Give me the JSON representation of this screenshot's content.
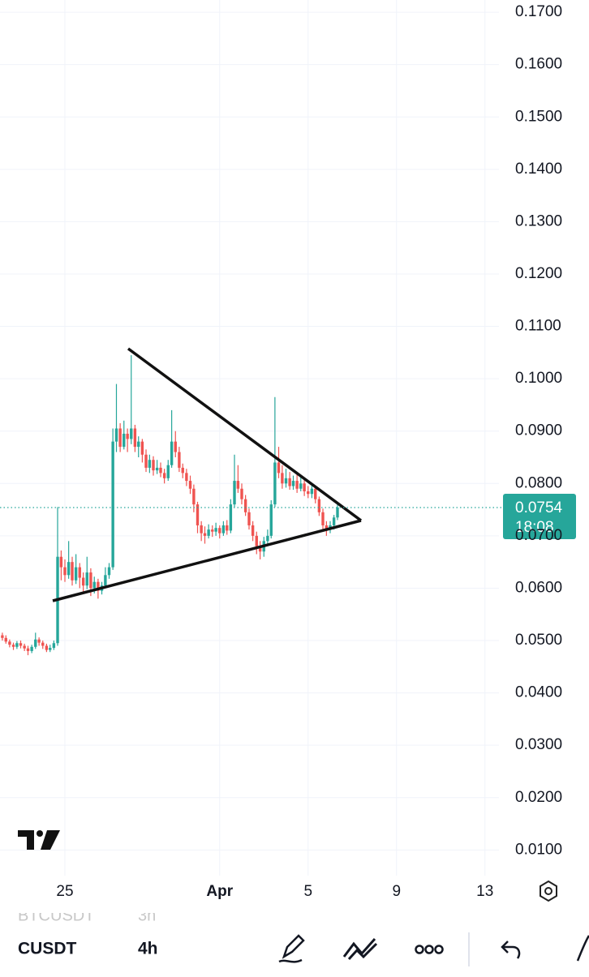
{
  "chart_data": {
    "type": "candlestick",
    "x": [
      22.17,
      22.33,
      22.5,
      22.67,
      22.83,
      23.0,
      23.17,
      23.33,
      23.5,
      23.67,
      23.83,
      24.0,
      24.17,
      24.33,
      24.5,
      24.67,
      24.83,
      25.0,
      25.17,
      25.33,
      25.5,
      25.67,
      25.83,
      26.0,
      26.17,
      26.33,
      26.5,
      26.67,
      26.83,
      27.0,
      27.17,
      27.33,
      27.5,
      27.67,
      27.83,
      28.0,
      28.17,
      28.33,
      28.5,
      28.67,
      28.83,
      29.0,
      29.17,
      29.33,
      29.5,
      29.67,
      29.83,
      30.0,
      30.17,
      30.33,
      30.5,
      30.67,
      30.83,
      31.0,
      31.17,
      31.33,
      31.5,
      31.67,
      31.83,
      32.0,
      32.17,
      32.33,
      32.5,
      32.67,
      32.83,
      33.0,
      33.17,
      33.33,
      33.5,
      33.67,
      33.83,
      34.0,
      34.17,
      34.33,
      34.5,
      34.67,
      34.83,
      35.0,
      35.17,
      35.33,
      35.5,
      35.67,
      35.83,
      36.0,
      36.17,
      36.33,
      36.5,
      36.67,
      36.83,
      37.0,
      37.17,
      37.33
    ],
    "open": [
      0.051,
      0.0505,
      0.0498,
      0.0492,
      0.0488,
      0.0495,
      0.049,
      0.0485,
      0.048,
      0.0488,
      0.0502,
      0.0496,
      0.049,
      0.0482,
      0.0486,
      0.0495,
      0.066,
      0.064,
      0.0625,
      0.065,
      0.0615,
      0.064,
      0.062,
      0.0605,
      0.063,
      0.06,
      0.0612,
      0.0595,
      0.0605,
      0.0625,
      0.064,
      0.088,
      0.0905,
      0.087,
      0.0895,
      0.0885,
      0.0905,
      0.087,
      0.088,
      0.0855,
      0.083,
      0.0845,
      0.0825,
      0.083,
      0.082,
      0.081,
      0.0835,
      0.088,
      0.086,
      0.083,
      0.082,
      0.0805,
      0.079,
      0.076,
      0.072,
      0.0705,
      0.07,
      0.0712,
      0.0708,
      0.0715,
      0.0705,
      0.072,
      0.071,
      0.076,
      0.0805,
      0.079,
      0.077,
      0.0745,
      0.072,
      0.07,
      0.068,
      0.067,
      0.069,
      0.07,
      0.076,
      0.084,
      0.082,
      0.08,
      0.081,
      0.0795,
      0.0805,
      0.079,
      0.08,
      0.0785,
      0.078,
      0.079,
      0.077,
      0.0745,
      0.072,
      0.0712,
      0.072,
      0.0735
    ],
    "high": [
      0.0515,
      0.051,
      0.0502,
      0.0496,
      0.0499,
      0.05,
      0.0494,
      0.049,
      0.0492,
      0.0515,
      0.0506,
      0.05,
      0.0494,
      0.0492,
      0.05,
      0.0755,
      0.0672,
      0.0655,
      0.069,
      0.066,
      0.0665,
      0.0648,
      0.063,
      0.066,
      0.0638,
      0.0622,
      0.0618,
      0.0612,
      0.064,
      0.0648,
      0.0905,
      0.099,
      0.0915,
      0.092,
      0.0905,
      0.1045,
      0.0912,
      0.089,
      0.0885,
      0.0865,
      0.0855,
      0.0852,
      0.0845,
      0.084,
      0.0828,
      0.0845,
      0.094,
      0.09,
      0.087,
      0.0838,
      0.0828,
      0.0815,
      0.0798,
      0.0765,
      0.0728,
      0.0718,
      0.0722,
      0.072,
      0.0725,
      0.072,
      0.0728,
      0.073,
      0.077,
      0.0855,
      0.0835,
      0.08,
      0.0778,
      0.0752,
      0.0728,
      0.0708,
      0.069,
      0.0698,
      0.0712,
      0.0768,
      0.0965,
      0.087,
      0.0835,
      0.0828,
      0.0822,
      0.0815,
      0.0818,
      0.0812,
      0.0808,
      0.0795,
      0.0798,
      0.0795,
      0.0775,
      0.0752,
      0.0728,
      0.0728,
      0.074,
      0.076
    ],
    "low": [
      0.05,
      0.0494,
      0.0487,
      0.0482,
      0.0484,
      0.0485,
      0.048,
      0.0472,
      0.0476,
      0.0484,
      0.049,
      0.0484,
      0.0478,
      0.0478,
      0.0482,
      0.049,
      0.0615,
      0.0612,
      0.0618,
      0.0605,
      0.0608,
      0.06,
      0.0592,
      0.0598,
      0.0585,
      0.059,
      0.058,
      0.0588,
      0.06,
      0.0618,
      0.0635,
      0.086,
      0.086,
      0.0865,
      0.086,
      0.0875,
      0.086,
      0.085,
      0.084,
      0.0822,
      0.082,
      0.0815,
      0.0818,
      0.0812,
      0.08,
      0.0805,
      0.083,
      0.085,
      0.0822,
      0.081,
      0.0795,
      0.078,
      0.0745,
      0.0705,
      0.069,
      0.0685,
      0.0695,
      0.0698,
      0.07,
      0.0695,
      0.07,
      0.0702,
      0.0705,
      0.0755,
      0.0782,
      0.076,
      0.0738,
      0.0712,
      0.069,
      0.0665,
      0.0655,
      0.066,
      0.0682,
      0.0695,
      0.0755,
      0.081,
      0.079,
      0.0792,
      0.0788,
      0.0788,
      0.0782,
      0.0785,
      0.0776,
      0.0772,
      0.0772,
      0.0762,
      0.0738,
      0.0712,
      0.07,
      0.0705,
      0.0712,
      0.073
    ],
    "close": [
      0.0505,
      0.0498,
      0.0492,
      0.0488,
      0.0495,
      0.049,
      0.0485,
      0.048,
      0.0488,
      0.0502,
      0.0496,
      0.049,
      0.0482,
      0.0486,
      0.0495,
      0.066,
      0.064,
      0.0625,
      0.065,
      0.0615,
      0.064,
      0.062,
      0.0605,
      0.063,
      0.06,
      0.0612,
      0.0595,
      0.0605,
      0.0625,
      0.064,
      0.088,
      0.0905,
      0.087,
      0.0895,
      0.0885,
      0.0905,
      0.087,
      0.088,
      0.0855,
      0.083,
      0.0845,
      0.0825,
      0.083,
      0.082,
      0.081,
      0.0835,
      0.088,
      0.086,
      0.083,
      0.082,
      0.0805,
      0.079,
      0.076,
      0.072,
      0.0705,
      0.07,
      0.0712,
      0.0708,
      0.0715,
      0.0705,
      0.072,
      0.071,
      0.076,
      0.0805,
      0.079,
      0.077,
      0.0745,
      0.072,
      0.07,
      0.068,
      0.067,
      0.069,
      0.07,
      0.076,
      0.084,
      0.082,
      0.08,
      0.081,
      0.0795,
      0.0805,
      0.079,
      0.08,
      0.0785,
      0.078,
      0.079,
      0.077,
      0.0745,
      0.072,
      0.0712,
      0.072,
      0.0735,
      0.0754
    ],
    "up_color": "#26a69a",
    "down_color": "#ef5350",
    "xlim": [
      22.064,
      44.633
    ],
    "xticks": [
      {
        "value": 25,
        "label": "25"
      },
      {
        "value": 32,
        "label": "Apr"
      },
      {
        "value": 36,
        "label": "5"
      },
      {
        "value": 40,
        "label": "9"
      },
      {
        "value": 44,
        "label": "13"
      }
    ],
    "ylim": [
      0.00505,
      0.17217
    ],
    "yticks": [
      {
        "value": 0.01,
        "label": "0.0100"
      },
      {
        "value": 0.02,
        "label": "0.0200"
      },
      {
        "value": 0.03,
        "label": "0.0300"
      },
      {
        "value": 0.04,
        "label": "0.0400"
      },
      {
        "value": 0.05,
        "label": "0.0500"
      },
      {
        "value": 0.06,
        "label": "0.0600"
      },
      {
        "value": 0.07,
        "label": "0.0700"
      },
      {
        "value": 0.08,
        "label": "0.0800"
      },
      {
        "value": 0.09,
        "label": "0.0900"
      },
      {
        "value": 0.1,
        "label": "0.1000"
      },
      {
        "value": 0.11,
        "label": "0.1100"
      },
      {
        "value": 0.12,
        "label": "0.1200"
      },
      {
        "value": 0.13,
        "label": "0.1300"
      },
      {
        "value": 0.14,
        "label": "0.1400"
      },
      {
        "value": 0.15,
        "label": "0.1500"
      },
      {
        "value": 0.16,
        "label": "0.1600"
      },
      {
        "value": 0.17,
        "label": "0.1700"
      }
    ],
    "grid": true,
    "last_price": 0.0754,
    "countdown": "18:08"
  },
  "toolbar": {
    "previous_symbol": "BTCUSDT",
    "previous_interval": "3h",
    "symbol": "CUSDT",
    "interval": "4h"
  }
}
